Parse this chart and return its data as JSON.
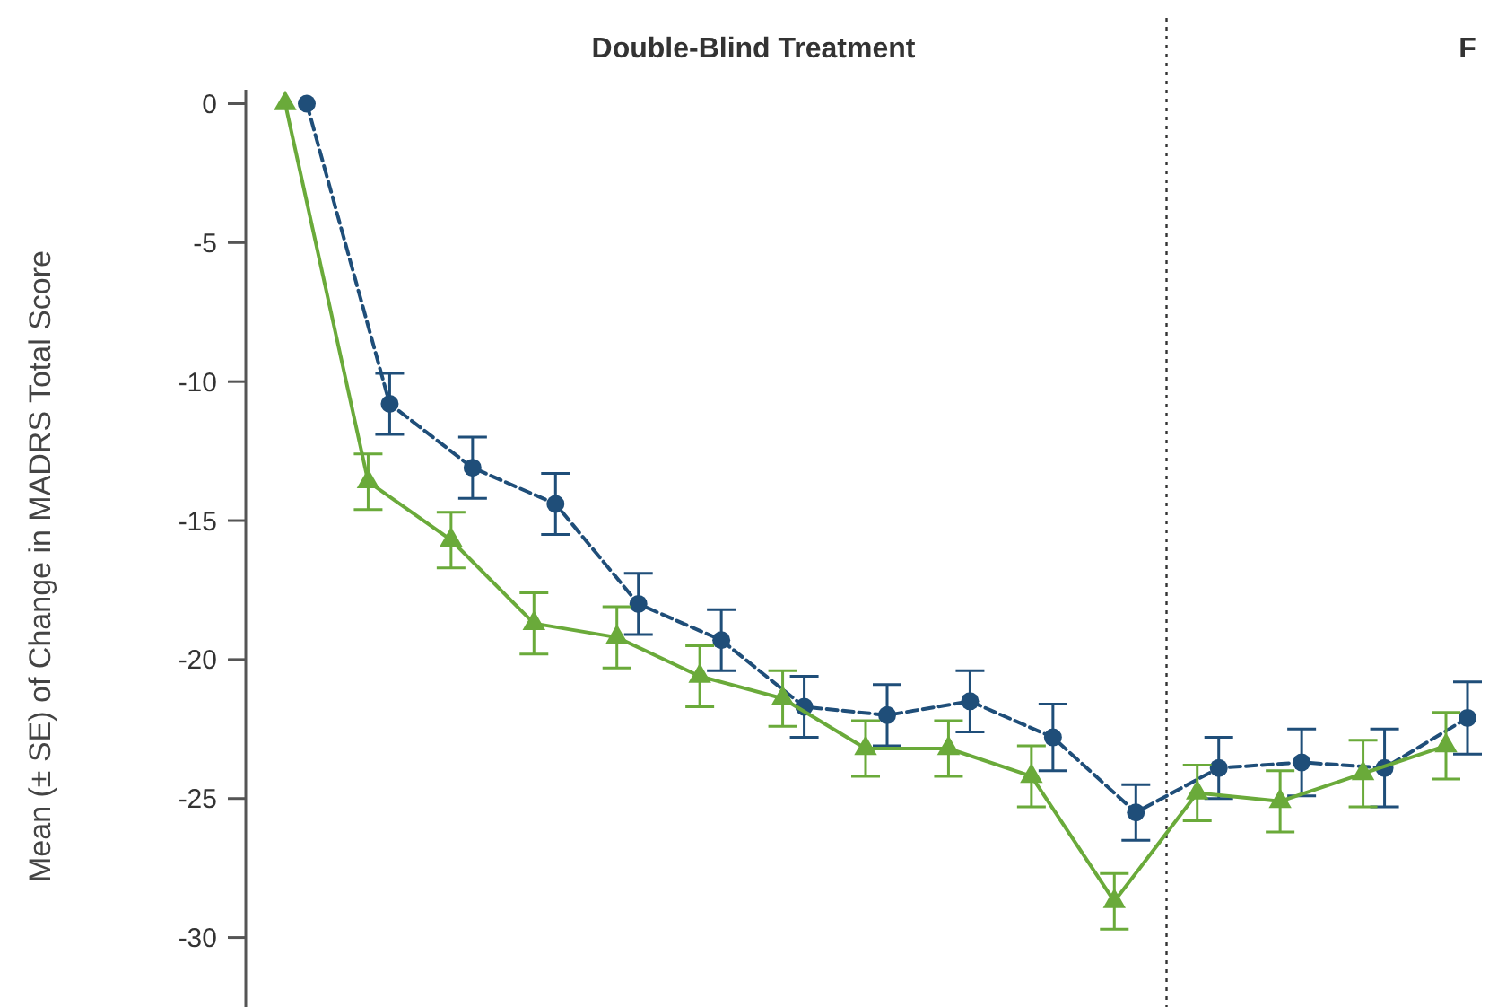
{
  "chart_data": {
    "type": "line",
    "title": "Double-Blind Treatment",
    "ylabel": "Mean (± SE) of Change in MADRS Total Score",
    "categories": [
      null,
      null,
      null,
      null,
      null,
      null,
      null,
      null,
      null,
      null,
      null,
      null,
      null,
      null,
      null
    ],
    "series": [
      {
        "color": "#1f4e79",
        "marker": "circle",
        "line_style": "dashed",
        "values": [
          0,
          -10.8,
          -13.1,
          -14.4,
          -18.0,
          -19.3,
          -21.7,
          -22.0,
          -21.5,
          -22.8,
          -25.5,
          -23.9,
          -23.7,
          -23.9,
          -22.1
        ],
        "errors": [
          null,
          1.1,
          1.1,
          1.1,
          1.1,
          1.1,
          1.1,
          1.1,
          1.1,
          1.2,
          1.0,
          1.1,
          1.2,
          1.4,
          1.3
        ]
      },
      {
        "color": "#6aaa3a",
        "marker": "triangle",
        "line_style": "solid",
        "values": [
          0,
          -13.6,
          -15.7,
          -18.7,
          -19.2,
          -20.6,
          -21.4,
          -23.2,
          -23.2,
          -24.2,
          -28.7,
          -24.8,
          -25.1,
          -24.1,
          -23.1
        ],
        "errors": [
          null,
          1.0,
          1.0,
          1.1,
          1.1,
          1.1,
          1.0,
          1.0,
          1.0,
          1.1,
          1.0,
          1.0,
          1.1,
          1.2,
          1.2
        ]
      }
    ],
    "ylim": [
      -32.5,
      0.5
    ],
    "yticks": [
      0,
      -5,
      -10,
      -15,
      -20,
      -25,
      -30
    ],
    "tick_labels": "y",
    "annotations": [
      "F"
    ]
  }
}
